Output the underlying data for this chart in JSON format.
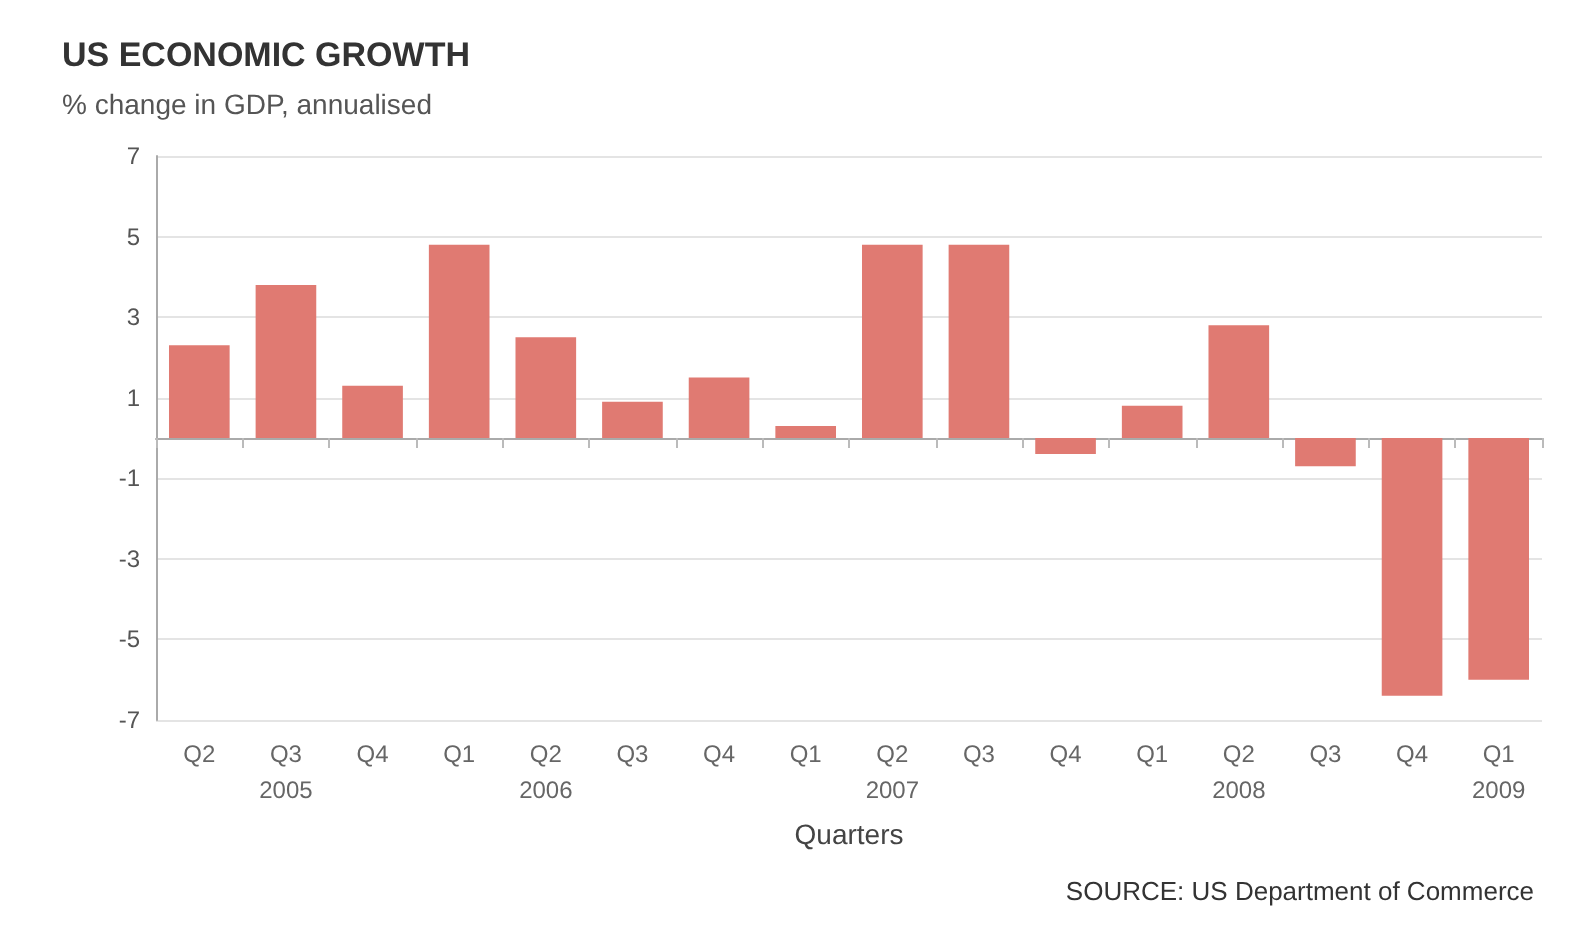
{
  "chart_data": {
    "type": "bar",
    "title": "US ECONOMIC GROWTH",
    "subtitle": "% change in GDP, annualised",
    "xlabel": "Quarters",
    "annotations": [
      "SOURCE: US Department of Commerce"
    ],
    "categories": [
      "Q2",
      "Q3\n2005",
      "Q4",
      "Q1",
      "Q2\n2006",
      "Q3",
      "Q4",
      "Q1",
      "Q2\n2007",
      "Q3",
      "Q4",
      "Q1",
      "Q2\n2008",
      "Q3",
      "Q4",
      "Q1\n2009"
    ],
    "values": [
      2.3,
      3.8,
      1.3,
      4.8,
      2.5,
      0.9,
      1.5,
      0.3,
      4.8,
      4.8,
      -0.4,
      0.8,
      2.8,
      -0.7,
      -6.4,
      -6.0
    ],
    "color": "#e07a72",
    "ylim": [
      -7,
      7
    ],
    "yticks": [
      -7,
      -5,
      -3,
      -1,
      1,
      3,
      5,
      7
    ],
    "grid": "y"
  }
}
